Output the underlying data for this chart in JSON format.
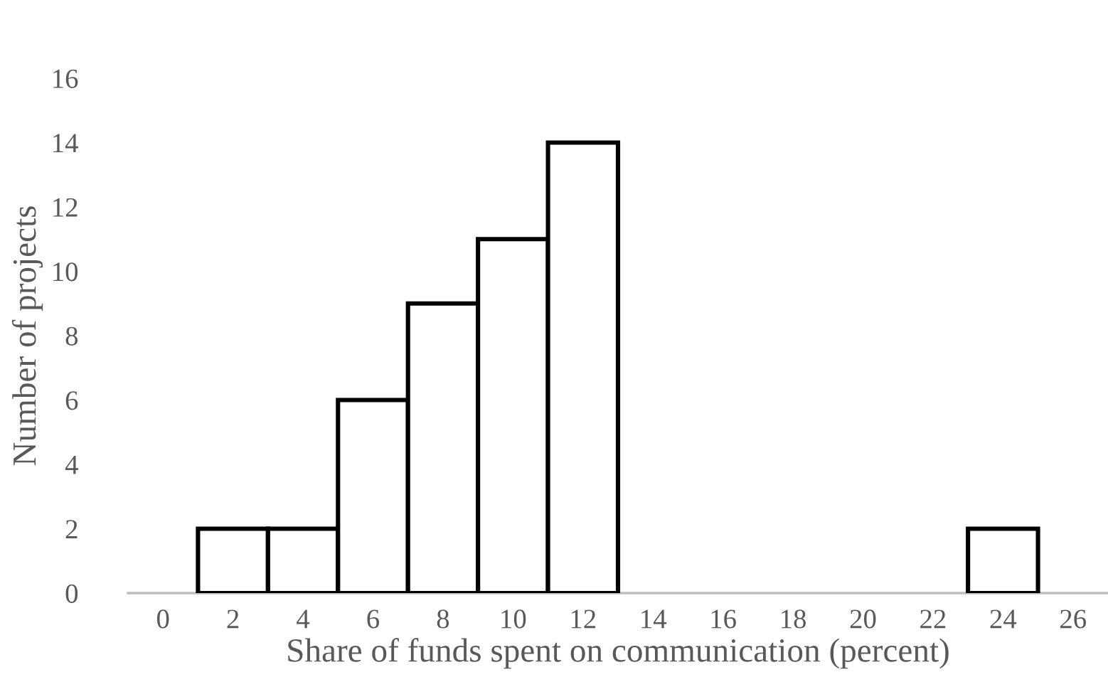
{
  "chart_data": {
    "type": "histogram",
    "xlabel": "Share of funds spent on communication (percent)",
    "ylabel": "Number of projects",
    "bins": [
      1,
      3,
      5,
      7,
      9,
      11,
      13,
      15,
      17,
      19,
      21,
      23,
      25
    ],
    "values": [
      2,
      2,
      6,
      9,
      11,
      14,
      0,
      0,
      0,
      0,
      0,
      2
    ],
    "color": "#ffffff",
    "xlim": [
      -1,
      27
    ],
    "xticks": [
      0,
      2,
      4,
      6,
      8,
      10,
      12,
      14,
      16,
      18,
      20,
      22,
      24,
      26
    ],
    "ylim": [
      0,
      16
    ],
    "yticks": [
      0,
      2,
      4,
      6,
      8,
      10,
      12,
      14,
      16
    ],
    "grid": false,
    "legend": false
  }
}
